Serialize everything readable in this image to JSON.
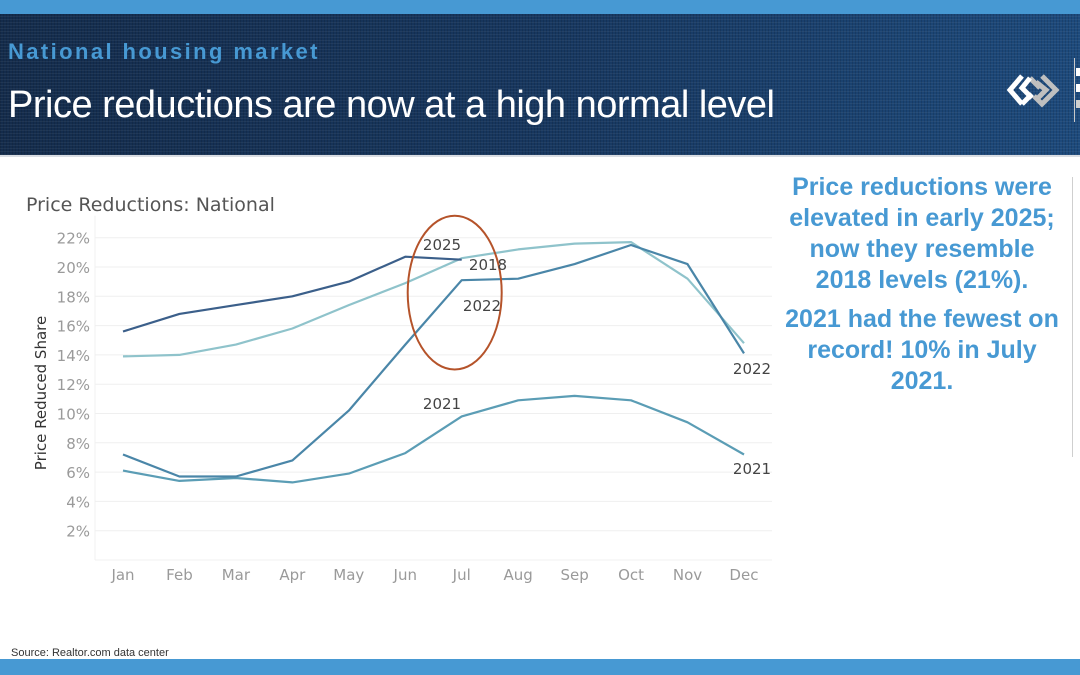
{
  "header": {
    "kicker": "National housing market",
    "title": "Price reductions are now at a high normal level",
    "logo_icon": "interlocking-chevrons-logo"
  },
  "side_note": {
    "paragraph1": "Price reductions were elevated in early 2025; now they resemble 2018 levels (21%).",
    "paragraph2": "2021 had the fewest on record! 10% in July 2021."
  },
  "footer": {
    "source": "Source: Realtor.com data center"
  },
  "colors": {
    "accent": "#4799d3",
    "header_bg": "#17375c",
    "highlight_ellipse": "#b5532a",
    "series_2025": "#3b5f8a",
    "series_2018": "#8fc3cb",
    "series_2022": "#4a86a8",
    "series_2021": "#5b9db5"
  },
  "chart_data": {
    "type": "line",
    "title": "Price Reductions: National",
    "xlabel": "",
    "ylabel": "Price Reduced Share",
    "categories": [
      "Jan",
      "Feb",
      "Mar",
      "Apr",
      "May",
      "Jun",
      "Jul",
      "Aug",
      "Sep",
      "Oct",
      "Nov",
      "Dec"
    ],
    "ylim": [
      0,
      24
    ],
    "yticks": [
      2,
      4,
      6,
      8,
      10,
      12,
      14,
      16,
      18,
      20,
      22
    ],
    "ytick_labels": [
      "2%",
      "4%",
      "6%",
      "8%",
      "10%",
      "12%",
      "14%",
      "16%",
      "18%",
      "20%",
      "22%"
    ],
    "grid": true,
    "legend": "none (direct labels)",
    "series": [
      {
        "name": "2025",
        "color": "#3b5f8a",
        "values": [
          15.6,
          16.8,
          17.4,
          18.0,
          19.0,
          20.7,
          20.5,
          null,
          null,
          null,
          null,
          null
        ]
      },
      {
        "name": "2018",
        "color": "#8fc3cb",
        "values": [
          13.9,
          14.0,
          14.7,
          15.8,
          17.4,
          18.9,
          20.6,
          21.2,
          21.6,
          21.7,
          19.2,
          14.8
        ]
      },
      {
        "name": "2022",
        "color": "#4a86a8",
        "values": [
          7.2,
          5.7,
          5.7,
          6.8,
          10.2,
          14.7,
          19.1,
          19.2,
          20.2,
          21.5,
          20.2,
          14.1
        ]
      },
      {
        "name": "2021",
        "color": "#5b9db5",
        "values": [
          6.1,
          5.4,
          5.6,
          5.3,
          5.9,
          7.3,
          9.8,
          10.9,
          11.2,
          10.9,
          9.4,
          7.2
        ]
      }
    ],
    "annotations": [
      {
        "text": "2025",
        "month": "Jul"
      },
      {
        "text": "2018",
        "month": "Jul"
      },
      {
        "text": "2022",
        "month": "Jul"
      },
      {
        "text": "2022",
        "month": "Dec"
      },
      {
        "text": "2021",
        "month": "Jul"
      },
      {
        "text": "2021",
        "month": "Dec"
      }
    ],
    "highlight": {
      "shape": "ellipse",
      "around_month": "Jul",
      "range": [
        13,
        23.5
      ]
    }
  }
}
